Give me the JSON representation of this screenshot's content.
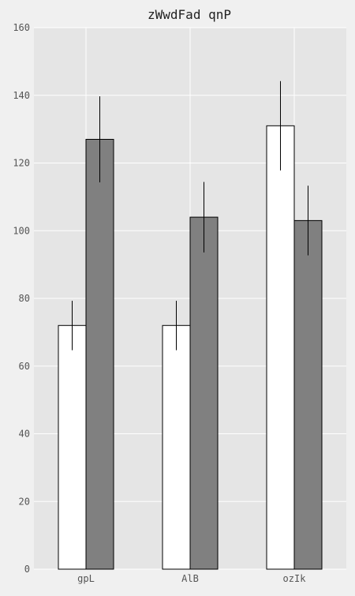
{
  "chart_data": {
    "type": "bar",
    "title": "zWwdFad qnP",
    "xlabel": "",
    "ylabel": "",
    "categories": [
      "gpL",
      "AlB",
      "ozIk"
    ],
    "series": [
      {
        "color": "#ffffff",
        "values": [
          72,
          72,
          131
        ],
        "errors": [
          7.3,
          7.3,
          13.2
        ]
      },
      {
        "color": "#808080",
        "values": [
          127,
          104,
          103
        ],
        "errors": [
          12.7,
          10.4,
          10.3
        ]
      }
    ],
    "ylim": [
      0,
      160
    ],
    "yticks": [
      0,
      20,
      40,
      60,
      80,
      100,
      120,
      140,
      160
    ],
    "grid": true,
    "legend": "none",
    "background": "#e5e5e5",
    "grid_color": "#ffffff"
  }
}
